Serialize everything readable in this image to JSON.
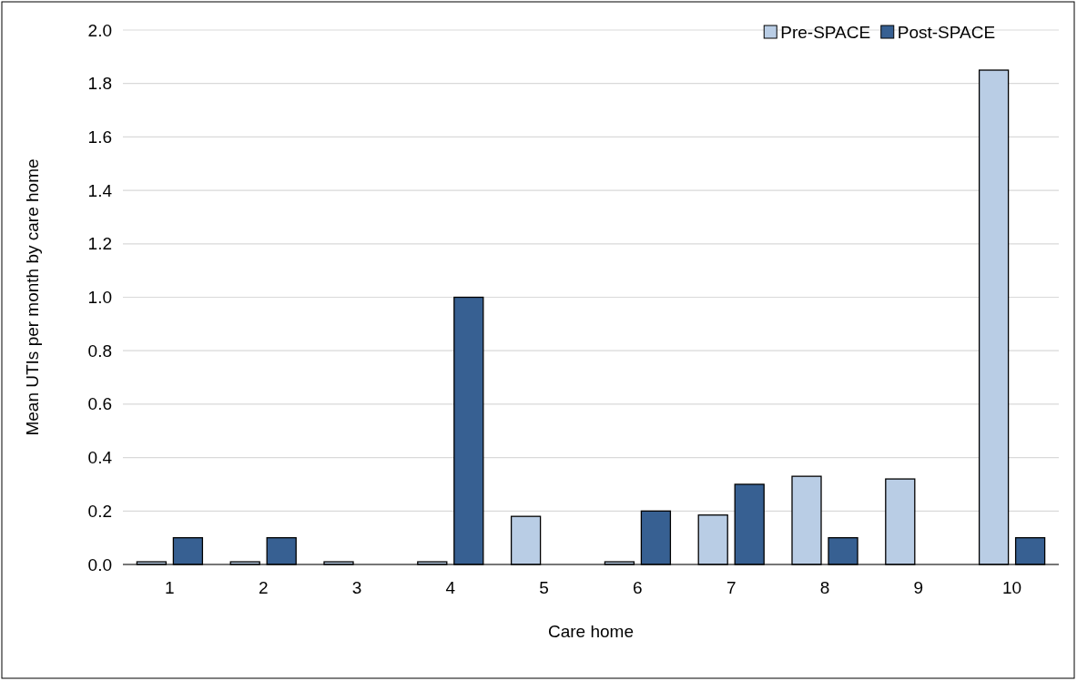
{
  "chart_data": {
    "type": "bar",
    "xlabel": "Care home",
    "ylabel": "Mean UTIs per month by care home",
    "categories": [
      "1",
      "2",
      "3",
      "4",
      "5",
      "6",
      "7",
      "8",
      "9",
      "10"
    ],
    "series": [
      {
        "name": "Pre-SPACE",
        "color": "#b9cde5",
        "values": [
          0.01,
          0.01,
          0.01,
          0.01,
          0.18,
          0.01,
          0.185,
          0.33,
          0.32,
          1.85
        ]
      },
      {
        "name": "Post-SPACE",
        "color": "#376092",
        "values": [
          0.1,
          0.1,
          0,
          1.0,
          0,
          0.2,
          0.3,
          0.1,
          0,
          0.1
        ]
      }
    ],
    "ylim": [
      0,
      2
    ],
    "yticks": [
      {
        "value": 0,
        "label": "0.0"
      },
      {
        "value": 0.2,
        "label": "0.2"
      },
      {
        "value": 0.4,
        "label": "0.4"
      },
      {
        "value": 0.6,
        "label": "0.6"
      },
      {
        "value": 0.8,
        "label": "0.8"
      },
      {
        "value": 1.0,
        "label": "1.0"
      },
      {
        "value": 1.2,
        "label": "1.2"
      },
      {
        "value": 1.4,
        "label": "1.4"
      },
      {
        "value": 1.6,
        "label": "1.6"
      },
      {
        "value": 1.8,
        "label": "1.8"
      },
      {
        "value": 2.0,
        "label": "2.0"
      }
    ],
    "grid": "y",
    "legend": "top right"
  }
}
